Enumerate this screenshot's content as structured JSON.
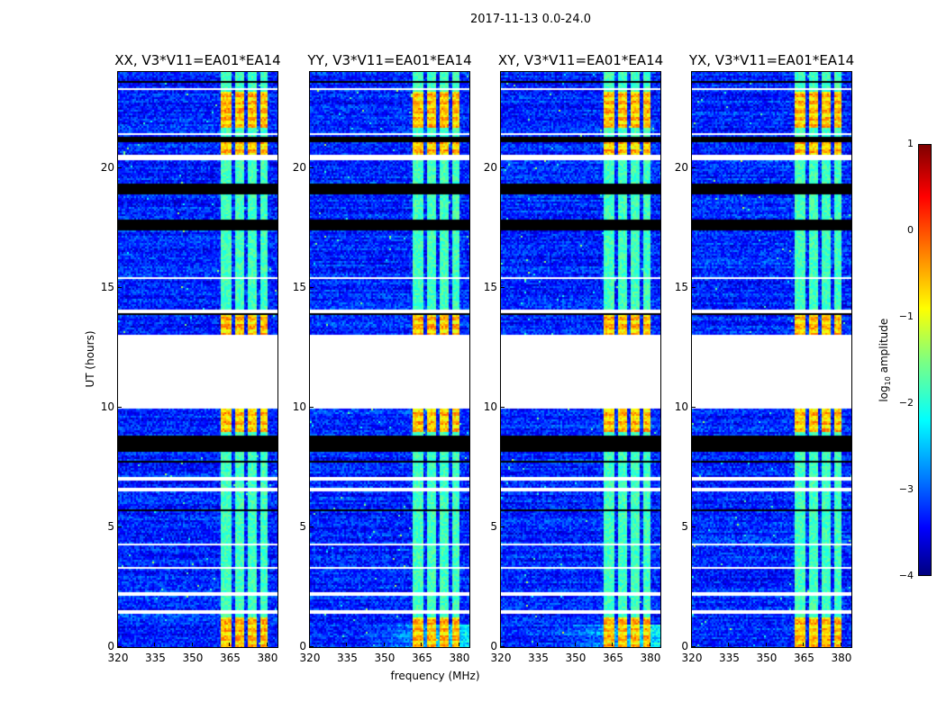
{
  "chart_data": {
    "type": "heatmap",
    "title": "2017-11-13 0.0-24.0",
    "xlabel": "frequency (MHz)",
    "ylabel": "UT (hours)",
    "xlim": [
      320,
      384
    ],
    "ylim": [
      0,
      24
    ],
    "xticks": [
      "320",
      "335",
      "350",
      "365",
      "380"
    ],
    "xtick_values": [
      320,
      335,
      350,
      365,
      380
    ],
    "yticks": [
      "0",
      "5",
      "10",
      "15",
      "20"
    ],
    "ytick_values": [
      0,
      5,
      10,
      15,
      20
    ],
    "panels": [
      {
        "title": "XX, V3*V11=EA01*EA14"
      },
      {
        "title": "YY, V3*V11=EA01*EA14"
      },
      {
        "title": "XY, V3*V11=EA01*EA14"
      },
      {
        "title": "YX, V3*V11=EA01*EA14"
      }
    ],
    "background_log_amplitude": -3.2,
    "band_log_amplitude": -1.8,
    "bright_band_log_amplitude": -0.4,
    "active_subbands_mhz": [
      [
        361,
        365.5
      ],
      [
        366.5,
        370.5
      ],
      [
        371.5,
        375.5
      ],
      [
        376.5,
        380
      ]
    ],
    "bright_hours": [
      [
        0,
        1.3
      ],
      [
        13.1,
        13.9
      ],
      [
        21.7,
        23.2
      ],
      [
        9.0,
        10.0
      ],
      [
        20.6,
        21.1
      ]
    ],
    "flagged_white_hours": [
      [
        10.0,
        13.1
      ],
      [
        20.35,
        20.6
      ],
      [
        14.0,
        14.1
      ],
      [
        6.5,
        6.7
      ],
      [
        1.45,
        1.6
      ],
      [
        2.15,
        2.3
      ],
      [
        7.0,
        7.1
      ],
      [
        4.3,
        4.35
      ],
      [
        3.3,
        3.35
      ],
      [
        15.4,
        15.45
      ],
      [
        16.5,
        16.55
      ],
      [
        22.5,
        22.55
      ],
      [
        23.3,
        23.35
      ],
      [
        21.4,
        21.5
      ]
    ],
    "flagged_black_hours": [
      [
        8.2,
        8.9
      ],
      [
        17.4,
        17.9
      ],
      [
        18.9,
        19.35
      ],
      [
        21.1,
        21.35
      ],
      [
        5.7,
        5.8
      ],
      [
        13.9,
        14.0
      ],
      [
        7.7,
        7.8
      ],
      [
        23.6,
        23.65
      ]
    ],
    "colorbar": {
      "label_main": "log",
      "label_sub": "10",
      "label_rest": " amplitude",
      "ticks": [
        "1",
        "0",
        "−1",
        "−2",
        "−3",
        "−4"
      ],
      "tick_values": [
        1,
        0,
        -1,
        -2,
        -3,
        -4
      ],
      "range": [
        -4,
        1
      ],
      "colormap": "jet"
    }
  }
}
